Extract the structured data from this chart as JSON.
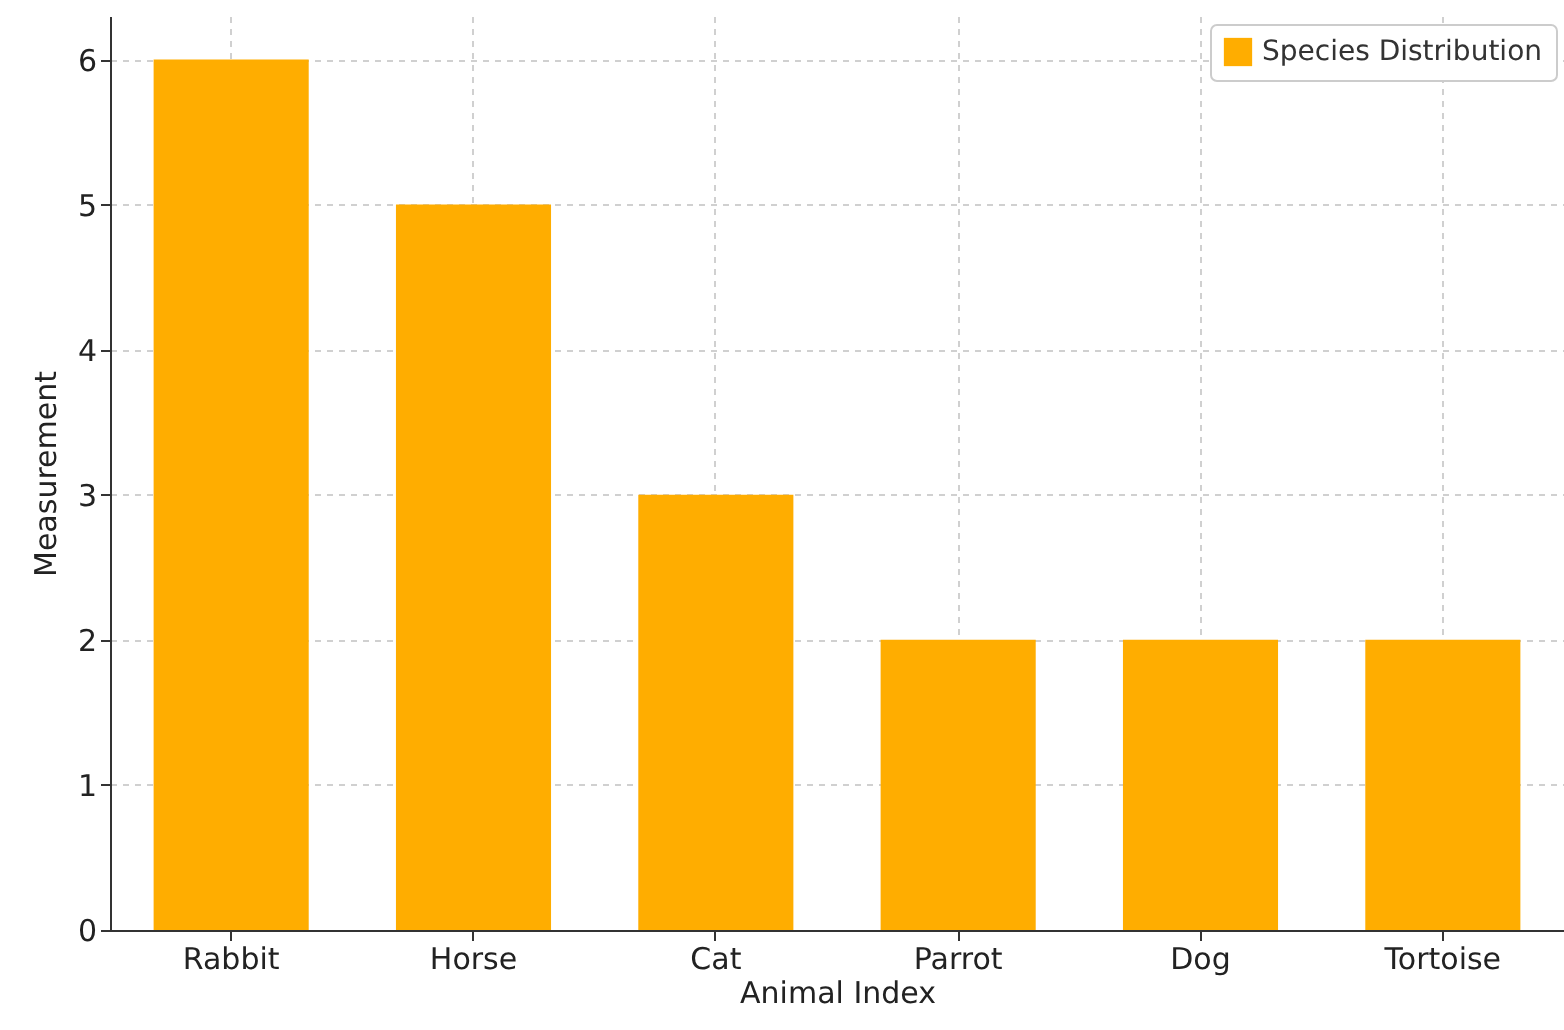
{
  "chart_data": {
    "type": "bar",
    "xlabel": "Animal Index",
    "ylabel": "Measurement",
    "categories": [
      "Rabbit",
      "Horse",
      "Cat",
      "Parrot",
      "Dog",
      "Tortoise"
    ],
    "series": [
      {
        "name": "Species Distribution",
        "color": "#ffad00",
        "values": [
          6,
          5,
          3,
          2,
          2,
          2
        ]
      }
    ],
    "ylim": [
      0,
      6.3
    ],
    "yticks": [
      0,
      1,
      2,
      3,
      4,
      5,
      6
    ],
    "grid": true,
    "legend": "top right"
  }
}
